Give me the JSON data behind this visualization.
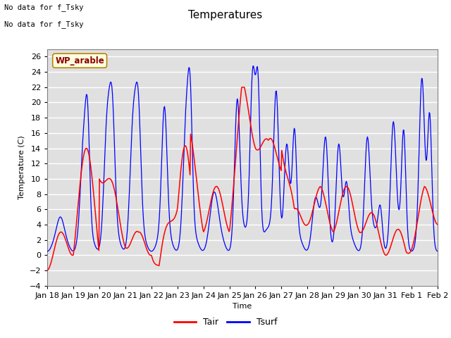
{
  "title": "Temperatures",
  "xlabel": "Time",
  "ylabel": "Temperature (C)",
  "ylim": [
    -4,
    27
  ],
  "yticks": [
    -4,
    -2,
    0,
    2,
    4,
    6,
    8,
    10,
    12,
    14,
    16,
    18,
    20,
    22,
    24,
    26
  ],
  "text_above": [
    "No data for f_Tsky",
    "No data for f_Tsky"
  ],
  "wp_label": "WP_arable",
  "legend_entries": [
    "Tair",
    "Tsurf"
  ],
  "tair_color": "red",
  "tsurf_color": "blue",
  "background_color": "#e0e0e0",
  "grid_color": "white",
  "xtick_labels": [
    "Jan 18",
    "Jan 19",
    "Jan 20",
    "Jan 21",
    "Jan 22",
    "Jan 23",
    "Jan 24",
    "Jan 25",
    "Jan 26",
    "Jan 27",
    "Jan 28",
    "Jan 29",
    "Jan 30",
    "Jan 31",
    "Feb 1",
    "Feb 2"
  ],
  "title_fontsize": 11,
  "axis_fontsize": 8,
  "tick_fontsize": 8
}
